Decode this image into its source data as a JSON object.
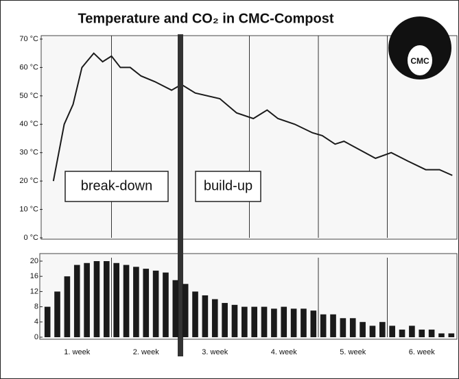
{
  "chart_data": [
    {
      "type": "line",
      "title": "Temperature and CO₂ in CMC-Compost",
      "logo": "CMC",
      "color": "#1a1a1a",
      "xlim": [
        0,
        42
      ],
      "xgrid": [
        7,
        21,
        28,
        35
      ],
      "divider": 14,
      "ylim": [
        0,
        70
      ],
      "yticks": [
        {
          "value": 0,
          "label": "0 °C"
        },
        {
          "value": 10,
          "label": "10 °C"
        },
        {
          "value": 20,
          "label": "20 °C"
        },
        {
          "value": 30,
          "label": "30 °C"
        },
        {
          "value": 40,
          "label": "40 °C"
        },
        {
          "value": 50,
          "label": "50 °C"
        },
        {
          "value": 60,
          "label": "60 °C"
        },
        {
          "value": 70,
          "label": "70 °C"
        }
      ],
      "annotations": [
        "break-down",
        "build-up"
      ],
      "x": [
        1.1,
        2.2,
        3.1,
        4,
        5.2,
        6.1,
        7,
        7.9,
        8.9,
        10,
        11.4,
        13.1,
        14.1,
        15.5,
        18,
        19.7,
        21.4,
        22.8,
        23.9,
        25.6,
        27.4,
        28.4,
        29.7,
        30.6,
        33.8,
        35.4,
        37.1,
        38.9,
        40.3,
        41.6
      ],
      "values": [
        20,
        40,
        47,
        60,
        65,
        62,
        64,
        60,
        60,
        57,
        55,
        52,
        54,
        51,
        49,
        44,
        42,
        45,
        42,
        40,
        37,
        36,
        33,
        34,
        28,
        30,
        27,
        24,
        24,
        22
      ]
    },
    {
      "type": "bar",
      "color": "#1a1a1a",
      "xlim": [
        0,
        42
      ],
      "xgrid": [
        7,
        28,
        35
      ],
      "xticks": [
        {
          "value": 3.5,
          "label": "1. week"
        },
        {
          "value": 10.5,
          "label": "2. week"
        },
        {
          "value": 17.5,
          "label": "3. week"
        },
        {
          "value": 24.5,
          "label": "4. week"
        },
        {
          "value": 31.5,
          "label": "5. week"
        },
        {
          "value": 38.5,
          "label": "6. week"
        }
      ],
      "ylim": [
        0,
        20
      ],
      "yticks": [
        0,
        4,
        8,
        12,
        16,
        20
      ],
      "x": [
        0.5,
        1.5,
        2.5,
        3.5,
        4.5,
        5.5,
        6.5,
        7.5,
        8.5,
        9.5,
        10.5,
        11.5,
        12.5,
        13.5,
        14.5,
        15.5,
        16.5,
        17.5,
        18.5,
        19.5,
        20.5,
        21.5,
        22.5,
        23.5,
        24.5,
        25.5,
        26.5,
        27.5,
        28.5,
        29.5,
        30.5,
        31.5,
        32.5,
        33.5,
        34.5,
        35.5,
        36.5,
        37.5,
        38.5,
        39.5,
        40.5,
        41.5
      ],
      "values": [
        8,
        12,
        16,
        19,
        19.5,
        20,
        20,
        19.5,
        19,
        18.5,
        18,
        17.5,
        17,
        15,
        14,
        12,
        11,
        10,
        9,
        8.5,
        8,
        8,
        8,
        7.5,
        8,
        7.5,
        7.5,
        7,
        6,
        6,
        5,
        5,
        4,
        3,
        4,
        3,
        2,
        3,
        2,
        2,
        1,
        1
      ]
    }
  ]
}
